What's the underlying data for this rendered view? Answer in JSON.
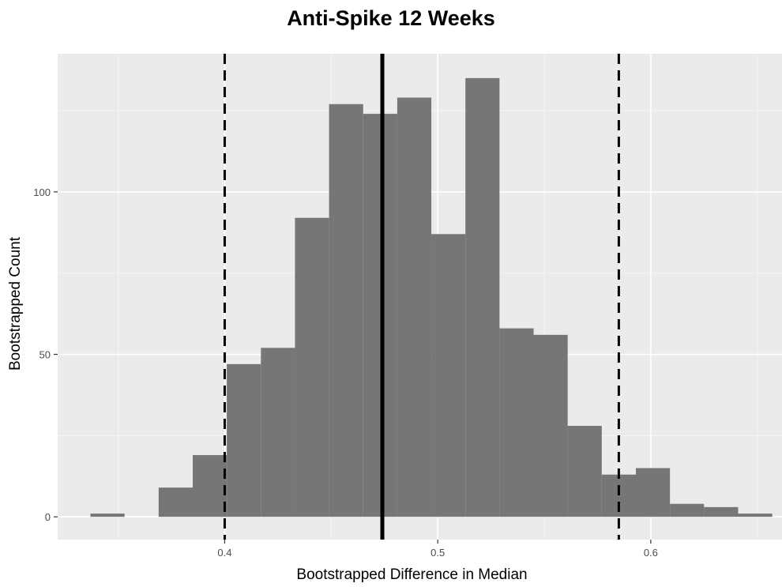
{
  "chart_data": {
    "type": "histogram",
    "title": "Anti-Spike 12 Weeks",
    "xlabel": "Bootstrapped Difference in Median",
    "ylabel": "Bootstrapped Count",
    "xlim": [
      0.3216,
      0.6616
    ],
    "ylim": [
      -7,
      142.5
    ],
    "xticks": [
      0.4,
      0.5,
      0.6
    ],
    "xtick_labels": [
      "0.4",
      "0.5",
      "0.6"
    ],
    "yticks": [
      0,
      50,
      100
    ],
    "ytick_labels": [
      "0",
      "50",
      "100"
    ],
    "grid": true,
    "bins": [
      {
        "x0": 0.337,
        "x1": 0.353,
        "count": 1
      },
      {
        "x0": 0.353,
        "x1": 0.369,
        "count": 0
      },
      {
        "x0": 0.369,
        "x1": 0.385,
        "count": 9
      },
      {
        "x0": 0.385,
        "x1": 0.401,
        "count": 19
      },
      {
        "x0": 0.401,
        "x1": 0.417,
        "count": 47
      },
      {
        "x0": 0.417,
        "x1": 0.433,
        "count": 52
      },
      {
        "x0": 0.433,
        "x1": 0.449,
        "count": 92
      },
      {
        "x0": 0.449,
        "x1": 0.465,
        "count": 127
      },
      {
        "x0": 0.465,
        "x1": 0.481,
        "count": 124
      },
      {
        "x0": 0.481,
        "x1": 0.497,
        "count": 129
      },
      {
        "x0": 0.497,
        "x1": 0.513,
        "count": 87
      },
      {
        "x0": 0.513,
        "x1": 0.529,
        "count": 135
      },
      {
        "x0": 0.529,
        "x1": 0.545,
        "count": 58
      },
      {
        "x0": 0.545,
        "x1": 0.561,
        "count": 56
      },
      {
        "x0": 0.561,
        "x1": 0.577,
        "count": 28
      },
      {
        "x0": 0.577,
        "x1": 0.593,
        "count": 13
      },
      {
        "x0": 0.593,
        "x1": 0.609,
        "count": 15
      },
      {
        "x0": 0.609,
        "x1": 0.625,
        "count": 4
      },
      {
        "x0": 0.625,
        "x1": 0.641,
        "count": 3
      },
      {
        "x0": 0.641,
        "x1": 0.657,
        "count": 1
      }
    ],
    "vlines": [
      {
        "x": 0.4,
        "style": "dashed"
      },
      {
        "x": 0.474,
        "style": "solid"
      },
      {
        "x": 0.585,
        "style": "dashed"
      }
    ],
    "colors": {
      "panel_background": "#ebebeb",
      "grid_major": "#ffffff",
      "grid_minor": "#f5f5f5",
      "bar_fill": "#767676",
      "vline": "#000000"
    }
  }
}
